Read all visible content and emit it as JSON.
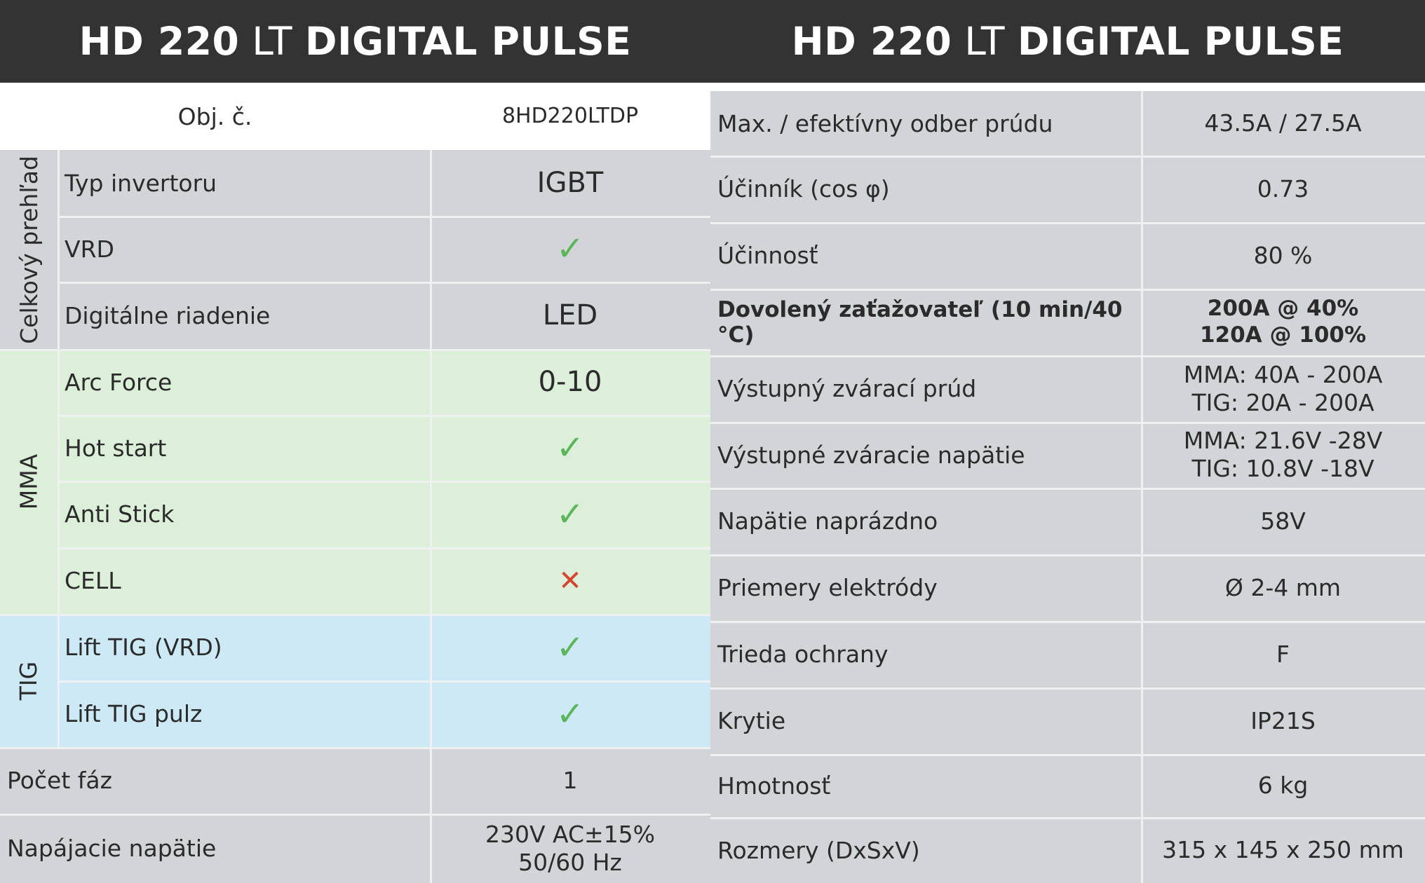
{
  "left": {
    "header": {
      "bold1": "HD 220",
      "normal": "LT",
      "bold2": "DIGITAL PULSE"
    },
    "obj": {
      "label": "Obj. č.",
      "value": "8HD220LTDP"
    },
    "groups": {
      "overview": "Celkový prehľad",
      "mma": "MMA",
      "tig": "TIG"
    },
    "rows": [
      {
        "label": "Typ invertoru",
        "value": "IGBT"
      },
      {
        "label": "VRD",
        "value": "✓"
      },
      {
        "label": "Digitálne riadenie",
        "value": "LED"
      },
      {
        "label": "Arc Force",
        "value": "0-10"
      },
      {
        "label": "Hot start",
        "value": "✓"
      },
      {
        "label": "Anti Stick",
        "value": "✓"
      },
      {
        "label": "CELL",
        "value": "✕"
      },
      {
        "label": "Lift TIG (VRD)",
        "value": "✓"
      },
      {
        "label": "Lift TIG pulz",
        "value": "✓"
      }
    ],
    "bottom": [
      {
        "label": "Počet fáz",
        "value": "1"
      },
      {
        "label": "Napájacie napätie",
        "value_line1": "230V AC±15%",
        "value_line2": "50/60 Hz"
      }
    ]
  },
  "right": {
    "header": {
      "bold1": "HD 220",
      "normal": "LT",
      "bold2": "DIGITAL PULSE"
    },
    "rows": [
      {
        "label": "Max. / efektívny odber prúdu",
        "value": "43.5A / 27.5A"
      },
      {
        "label": "Účinník (cos φ)",
        "value": "0.73"
      },
      {
        "label": "Účinnosť",
        "value": "80 %"
      },
      {
        "label": "Dovolený zaťažovateľ (10 min/40 °C)",
        "value_line1": "200A @ 40%",
        "value_line2": "120A @ 100%"
      },
      {
        "label": "Výstupný zvárací prúd",
        "value_line1": "MMA: 40A - 200A",
        "value_line2": "TIG: 20A - 200A"
      },
      {
        "label": "Výstupné zváracie napätie",
        "value_line1": "MMA: 21.6V -28V",
        "value_line2": "TIG: 10.8V -18V"
      },
      {
        "label": "Napätie naprázdno",
        "value": "58V"
      },
      {
        "label": "Priemery elektródy",
        "value": "Ø 2-4 mm"
      },
      {
        "label": "Trieda ochrany",
        "value": "F"
      },
      {
        "label": "Krytie",
        "value": "IP21S"
      },
      {
        "label": "Hmotnosť",
        "value": "6 kg"
      },
      {
        "label": "Rozmery (DxSxV)",
        "value": "315 x 145 x 250 mm"
      }
    ]
  }
}
